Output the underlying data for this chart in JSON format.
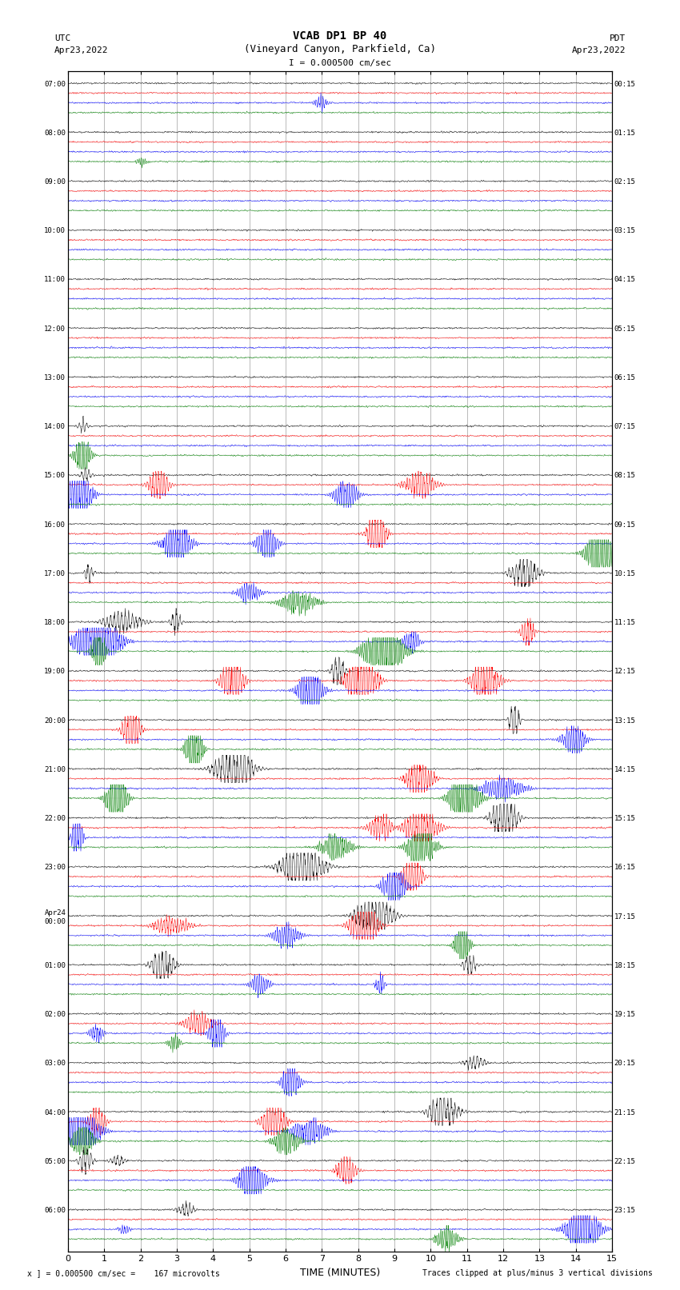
{
  "title_line1": "VCAB DP1 BP 40",
  "title_line2": "(Vineyard Canyon, Parkfield, Ca)",
  "scale_label": "I = 0.000500 cm/sec",
  "left_label_top": "UTC",
  "left_label_date": "Apr23,2022",
  "right_label_top": "PDT",
  "right_label_date": "Apr23,2022",
  "bottom_label": "TIME (MINUTES)",
  "footer_left": "x ] = 0.000500 cm/sec =    167 microvolts",
  "footer_right": "Traces clipped at plus/minus 3 vertical divisions",
  "utc_times": [
    "07:00",
    "08:00",
    "09:00",
    "10:00",
    "11:00",
    "12:00",
    "13:00",
    "14:00",
    "15:00",
    "16:00",
    "17:00",
    "18:00",
    "19:00",
    "20:00",
    "21:00",
    "22:00",
    "23:00",
    "Apr24\n00:00",
    "01:00",
    "02:00",
    "03:00",
    "04:00",
    "05:00",
    "06:00"
  ],
  "pdt_times": [
    "00:15",
    "01:15",
    "02:15",
    "03:15",
    "04:15",
    "05:15",
    "06:15",
    "07:15",
    "08:15",
    "09:15",
    "10:15",
    "11:15",
    "12:15",
    "13:15",
    "14:15",
    "15:15",
    "16:15",
    "17:15",
    "18:15",
    "19:15",
    "20:15",
    "21:15",
    "22:15",
    "23:15"
  ],
  "n_rows": 24,
  "n_minutes": 15,
  "traces_per_row": 4,
  "colors": [
    "black",
    "red",
    "blue",
    "green"
  ],
  "bg_color": "white",
  "grid_color": "#888888",
  "noise_amplitude": 0.012,
  "xmin": 0,
  "xmax": 15
}
